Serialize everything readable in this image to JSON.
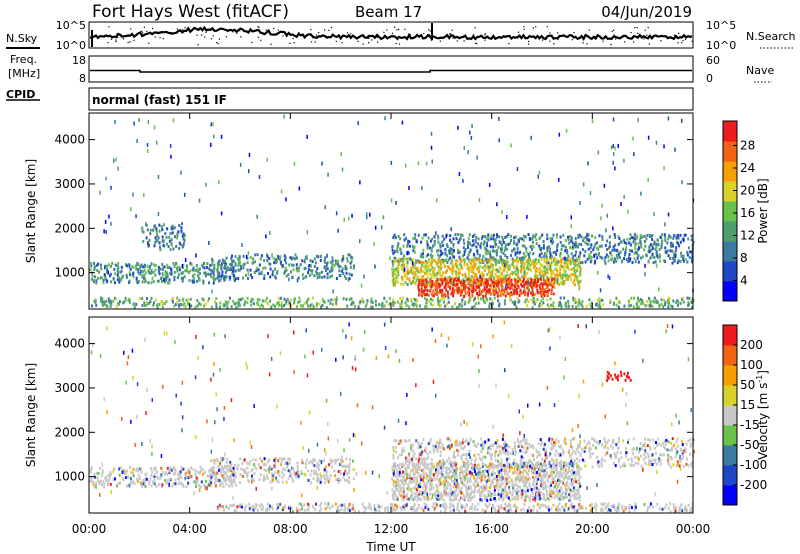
{
  "header": {
    "title": "Fort Hays West (fitACF)",
    "beam": "Beam 17",
    "date": "04/Jun/2019"
  },
  "noise_panel": {
    "left_label": "N.Sky",
    "right_label": "N.Search",
    "left_ticks": [
      "10^5",
      "10^0"
    ],
    "right_ticks": [
      "10^5",
      "10^0"
    ]
  },
  "freq_panel": {
    "left_label_line1": "Freq.",
    "left_label_line2": "[MHz]",
    "right_label": "Nave",
    "left_ticks": [
      "18",
      "8"
    ],
    "right_ticks": [
      "60",
      "0"
    ]
  },
  "cpid": {
    "label": "CPID",
    "value": "normal (fast) 151 IF"
  },
  "x_axis": {
    "label": "Time UT",
    "ticks": [
      "00:00",
      "04:00",
      "08:00",
      "12:00",
      "16:00",
      "20:00",
      "00:00"
    ]
  },
  "chart_data": [
    {
      "type": "heatmap",
      "name": "power-panel",
      "xlabel": "Time UT",
      "ylabel": "Slant Range [km]",
      "x_ticks_hours": [
        0,
        4,
        8,
        12,
        16,
        20,
        24
      ],
      "x_tick_labels": [
        "00:00",
        "04:00",
        "08:00",
        "12:00",
        "16:00",
        "20:00",
        "00:00"
      ],
      "y_ticks": [
        1000,
        2000,
        3000,
        4000
      ],
      "ylim": [
        180,
        4600
      ],
      "xlim_hours": [
        0,
        24
      ],
      "colorbar": {
        "label": "Power [dB]",
        "ticks": [
          "28",
          "24",
          "20",
          "16",
          "12",
          "8",
          "4"
        ],
        "range": [
          0,
          30
        ],
        "colors": [
          "#0000ff",
          "#1e46c8",
          "#3c7aa0",
          "#4f9e72",
          "#69c24b",
          "#d8d22a",
          "#f5a000",
          "#f06414",
          "#ee1c1c"
        ]
      },
      "regions": [
        {
          "t0": 0.0,
          "t1": 5.8,
          "r0": 750,
          "r1": 1200,
          "level": 0.35,
          "density": 0.55
        },
        {
          "t0": 2.0,
          "t1": 3.8,
          "r0": 1500,
          "r1": 2100,
          "level": 0.3,
          "density": 0.35
        },
        {
          "t0": 4.8,
          "t1": 10.5,
          "r0": 850,
          "r1": 1400,
          "level": 0.3,
          "density": 0.4
        },
        {
          "t0": 12.0,
          "t1": 24.0,
          "r0": 1200,
          "r1": 1850,
          "level": 0.3,
          "density": 0.45
        },
        {
          "t0": 12.0,
          "t1": 19.5,
          "r0": 700,
          "r1": 1300,
          "level": 0.6,
          "density": 0.75
        },
        {
          "t0": 13.0,
          "t1": 18.5,
          "r0": 450,
          "r1": 850,
          "level": 0.92,
          "density": 0.85
        },
        {
          "t0": 0.0,
          "t1": 24.0,
          "r0": 200,
          "r1": 420,
          "level": 0.45,
          "density": 0.45
        }
      ]
    },
    {
      "type": "heatmap",
      "name": "velocity-panel",
      "xlabel": "Time UT",
      "ylabel": "Slant Range [km]",
      "x_ticks_hours": [
        0,
        4,
        8,
        12,
        16,
        20,
        24
      ],
      "x_tick_labels": [
        "00:00",
        "04:00",
        "08:00",
        "12:00",
        "16:00",
        "20:00",
        "00:00"
      ],
      "y_ticks": [
        1000,
        2000,
        3000,
        4000
      ],
      "ylim": [
        180,
        4600
      ],
      "xlim_hours": [
        0,
        24
      ],
      "colorbar": {
        "label": "Velocity [m s",
        "label_superscript": "-1",
        "label_close": "]",
        "ticks": [
          "200",
          "100",
          "50",
          "15",
          "-15",
          "-50",
          "-100",
          "-200"
        ],
        "colors": [
          "#0000ff",
          "#1e46c8",
          "#3c7aa0",
          "#69c24b",
          "#c8c8c8",
          "#d8d22a",
          "#f5a000",
          "#f06414",
          "#ee1c1c"
        ]
      },
      "regions": [
        {
          "t0": 0.0,
          "t1": 5.8,
          "r0": 750,
          "r1": 1200,
          "level": 0.5,
          "density": 0.5
        },
        {
          "t0": 4.8,
          "t1": 10.5,
          "r0": 850,
          "r1": 1400,
          "level": 0.5,
          "density": 0.4
        },
        {
          "t0": 12.0,
          "t1": 24.0,
          "r0": 1200,
          "r1": 1850,
          "level": 0.5,
          "density": 0.4
        },
        {
          "t0": 12.0,
          "t1": 19.5,
          "r0": 450,
          "r1": 1300,
          "level": 0.5,
          "density": 0.8
        },
        {
          "t0": 5.0,
          "t1": 24.0,
          "r0": 200,
          "r1": 380,
          "level": 0.62,
          "density": 0.5
        },
        {
          "t0": 20.5,
          "t1": 21.5,
          "r0": 3150,
          "r1": 3350,
          "level": 0.95,
          "density": 0.6
        }
      ]
    }
  ]
}
